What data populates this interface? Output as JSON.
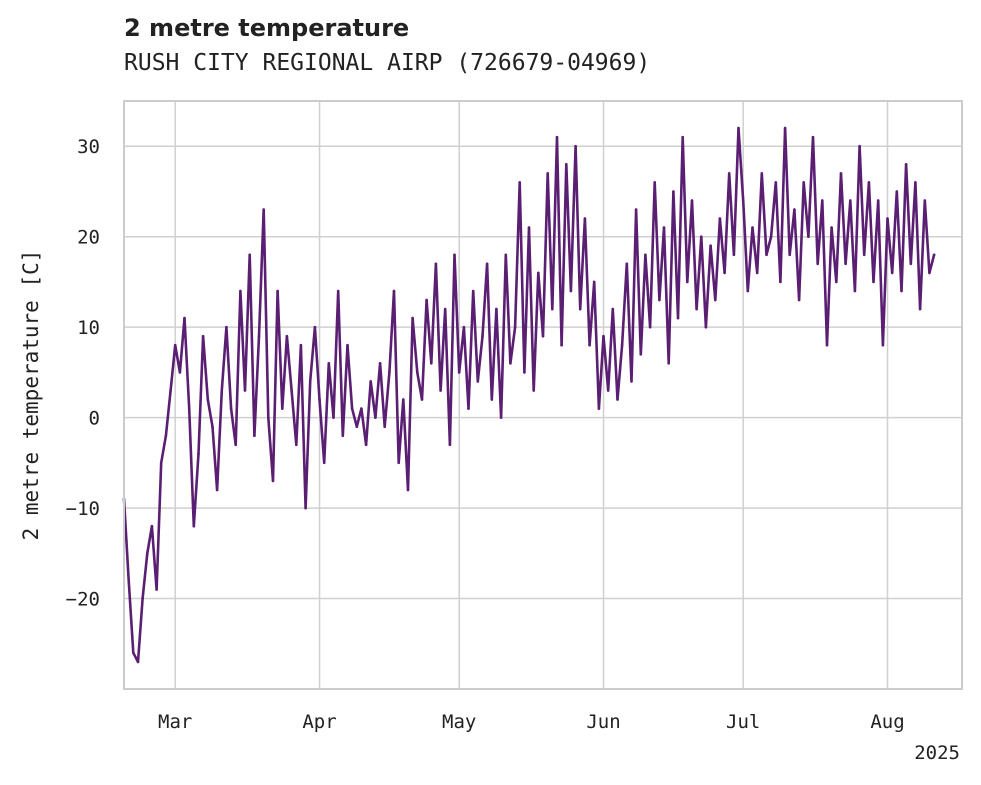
{
  "chart_data": {
    "type": "line",
    "title": "2 metre temperature",
    "subtitle": "RUSH CITY REGIONAL AIRP (726679-04969)",
    "xlabel": "",
    "ylabel": "2 metre temperature [C]",
    "year_label": "2025",
    "x_ticks": [
      "Mar",
      "Apr",
      "May",
      "Jun",
      "Jul",
      "Aug"
    ],
    "y_ticks": [
      -20,
      -10,
      0,
      10,
      20,
      30
    ],
    "xlim": [
      "2025-02-18",
      "2025-08-17"
    ],
    "ylim": [
      -30,
      35
    ],
    "grid": true,
    "line_color": "#5a1f72",
    "series": [
      {
        "values": [
          [
            "2025-02-18",
            -9
          ],
          [
            "2025-02-19",
            -18
          ],
          [
            "2025-02-20",
            -26
          ],
          [
            "2025-02-21",
            -27
          ],
          [
            "2025-02-22",
            -20
          ],
          [
            "2025-02-23",
            -15
          ],
          [
            "2025-02-24",
            -12
          ],
          [
            "2025-02-25",
            -19
          ],
          [
            "2025-02-26",
            -5
          ],
          [
            "2025-02-27",
            -2
          ],
          [
            "2025-02-28",
            3
          ],
          [
            "2025-03-01",
            8
          ],
          [
            "2025-03-02",
            5
          ],
          [
            "2025-03-03",
            11
          ],
          [
            "2025-03-04",
            1
          ],
          [
            "2025-03-05",
            -12
          ],
          [
            "2025-03-06",
            -4
          ],
          [
            "2025-03-07",
            9
          ],
          [
            "2025-03-08",
            2
          ],
          [
            "2025-03-09",
            -1
          ],
          [
            "2025-03-10",
            -8
          ],
          [
            "2025-03-11",
            3
          ],
          [
            "2025-03-12",
            10
          ],
          [
            "2025-03-13",
            1
          ],
          [
            "2025-03-14",
            -3
          ],
          [
            "2025-03-15",
            14
          ],
          [
            "2025-03-16",
            3
          ],
          [
            "2025-03-17",
            18
          ],
          [
            "2025-03-18",
            -2
          ],
          [
            "2025-03-19",
            9
          ],
          [
            "2025-03-20",
            23
          ],
          [
            "2025-03-21",
            0
          ],
          [
            "2025-03-22",
            -7
          ],
          [
            "2025-03-23",
            14
          ],
          [
            "2025-03-24",
            1
          ],
          [
            "2025-03-25",
            9
          ],
          [
            "2025-03-26",
            3
          ],
          [
            "2025-03-27",
            -3
          ],
          [
            "2025-03-28",
            8
          ],
          [
            "2025-03-29",
            -10
          ],
          [
            "2025-03-30",
            4
          ],
          [
            "2025-03-31",
            10
          ],
          [
            "2025-04-01",
            2
          ],
          [
            "2025-04-02",
            -5
          ],
          [
            "2025-04-03",
            6
          ],
          [
            "2025-04-04",
            0
          ],
          [
            "2025-04-05",
            14
          ],
          [
            "2025-04-06",
            -2
          ],
          [
            "2025-04-07",
            8
          ],
          [
            "2025-04-08",
            1
          ],
          [
            "2025-04-09",
            -1
          ],
          [
            "2025-04-10",
            1
          ],
          [
            "2025-04-11",
            -3
          ],
          [
            "2025-04-12",
            4
          ],
          [
            "2025-04-13",
            0
          ],
          [
            "2025-04-14",
            6
          ],
          [
            "2025-04-15",
            -1
          ],
          [
            "2025-04-16",
            5
          ],
          [
            "2025-04-17",
            14
          ],
          [
            "2025-04-18",
            -5
          ],
          [
            "2025-04-19",
            2
          ],
          [
            "2025-04-20",
            -8
          ],
          [
            "2025-04-21",
            11
          ],
          [
            "2025-04-22",
            5
          ],
          [
            "2025-04-23",
            2
          ],
          [
            "2025-04-24",
            13
          ],
          [
            "2025-04-25",
            6
          ],
          [
            "2025-04-26",
            17
          ],
          [
            "2025-04-27",
            3
          ],
          [
            "2025-04-28",
            12
          ],
          [
            "2025-04-29",
            -3
          ],
          [
            "2025-04-30",
            18
          ],
          [
            "2025-05-01",
            5
          ],
          [
            "2025-05-02",
            10
          ],
          [
            "2025-05-03",
            1
          ],
          [
            "2025-05-04",
            14
          ],
          [
            "2025-05-05",
            4
          ],
          [
            "2025-05-06",
            9
          ],
          [
            "2025-05-07",
            17
          ],
          [
            "2025-05-08",
            2
          ],
          [
            "2025-05-09",
            12
          ],
          [
            "2025-05-10",
            0
          ],
          [
            "2025-05-11",
            18
          ],
          [
            "2025-05-12",
            6
          ],
          [
            "2025-05-13",
            10
          ],
          [
            "2025-05-14",
            26
          ],
          [
            "2025-05-15",
            5
          ],
          [
            "2025-05-16",
            21
          ],
          [
            "2025-05-17",
            3
          ],
          [
            "2025-05-18",
            16
          ],
          [
            "2025-05-19",
            9
          ],
          [
            "2025-05-20",
            27
          ],
          [
            "2025-05-21",
            12
          ],
          [
            "2025-05-22",
            31
          ],
          [
            "2025-05-23",
            8
          ],
          [
            "2025-05-24",
            28
          ],
          [
            "2025-05-25",
            14
          ],
          [
            "2025-05-26",
            30
          ],
          [
            "2025-05-27",
            12
          ],
          [
            "2025-05-28",
            22
          ],
          [
            "2025-05-29",
            8
          ],
          [
            "2025-05-30",
            15
          ],
          [
            "2025-05-31",
            1
          ],
          [
            "2025-06-01",
            9
          ],
          [
            "2025-06-02",
            3
          ],
          [
            "2025-06-03",
            12
          ],
          [
            "2025-06-04",
            2
          ],
          [
            "2025-06-05",
            8
          ],
          [
            "2025-06-06",
            17
          ],
          [
            "2025-06-07",
            4
          ],
          [
            "2025-06-08",
            23
          ],
          [
            "2025-06-09",
            7
          ],
          [
            "2025-06-10",
            18
          ],
          [
            "2025-06-11",
            10
          ],
          [
            "2025-06-12",
            26
          ],
          [
            "2025-06-13",
            13
          ],
          [
            "2025-06-14",
            21
          ],
          [
            "2025-06-15",
            6
          ],
          [
            "2025-06-16",
            25
          ],
          [
            "2025-06-17",
            11
          ],
          [
            "2025-06-18",
            31
          ],
          [
            "2025-06-19",
            15
          ],
          [
            "2025-06-20",
            24
          ],
          [
            "2025-06-21",
            12
          ],
          [
            "2025-06-22",
            20
          ],
          [
            "2025-06-23",
            10
          ],
          [
            "2025-06-24",
            19
          ],
          [
            "2025-06-25",
            13
          ],
          [
            "2025-06-26",
            22
          ],
          [
            "2025-06-27",
            16
          ],
          [
            "2025-06-28",
            27
          ],
          [
            "2025-06-29",
            18
          ],
          [
            "2025-06-30",
            32
          ],
          [
            "2025-07-01",
            24
          ],
          [
            "2025-07-02",
            14
          ],
          [
            "2025-07-03",
            21
          ],
          [
            "2025-07-04",
            16
          ],
          [
            "2025-07-05",
            27
          ],
          [
            "2025-07-06",
            18
          ],
          [
            "2025-07-07",
            20
          ],
          [
            "2025-07-08",
            26
          ],
          [
            "2025-07-09",
            15
          ],
          [
            "2025-07-10",
            32
          ],
          [
            "2025-07-11",
            18
          ],
          [
            "2025-07-12",
            23
          ],
          [
            "2025-07-13",
            13
          ],
          [
            "2025-07-14",
            26
          ],
          [
            "2025-07-15",
            20
          ],
          [
            "2025-07-16",
            31
          ],
          [
            "2025-07-17",
            17
          ],
          [
            "2025-07-18",
            24
          ],
          [
            "2025-07-19",
            8
          ],
          [
            "2025-07-20",
            21
          ],
          [
            "2025-07-21",
            15
          ],
          [
            "2025-07-22",
            27
          ],
          [
            "2025-07-23",
            17
          ],
          [
            "2025-07-24",
            24
          ],
          [
            "2025-07-25",
            14
          ],
          [
            "2025-07-26",
            30
          ],
          [
            "2025-07-27",
            18
          ],
          [
            "2025-07-28",
            26
          ],
          [
            "2025-07-29",
            15
          ],
          [
            "2025-07-30",
            24
          ],
          [
            "2025-07-31",
            8
          ],
          [
            "2025-08-01",
            22
          ],
          [
            "2025-08-02",
            16
          ],
          [
            "2025-08-03",
            25
          ],
          [
            "2025-08-04",
            14
          ],
          [
            "2025-08-05",
            28
          ],
          [
            "2025-08-06",
            17
          ],
          [
            "2025-08-07",
            26
          ],
          [
            "2025-08-08",
            12
          ],
          [
            "2025-08-09",
            24
          ],
          [
            "2025-08-10",
            16
          ],
          [
            "2025-08-11",
            18
          ]
        ]
      }
    ]
  }
}
